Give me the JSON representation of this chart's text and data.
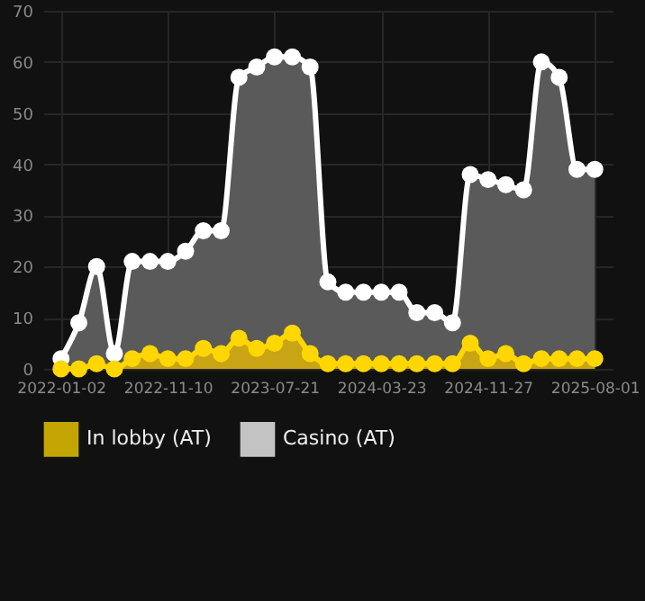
{
  "chart_data": {
    "type": "area",
    "categories": [
      "2022-01-02",
      null,
      null,
      null,
      null,
      null,
      "2022-11-10",
      null,
      null,
      null,
      null,
      null,
      "2023-07-21",
      null,
      null,
      null,
      null,
      null,
      "2024-03-23",
      null,
      null,
      null,
      null,
      null,
      "2024-11-27",
      null,
      null,
      null,
      null,
      null,
      "2025-08-01"
    ],
    "series": [
      {
        "name": "In lobby (AT)",
        "color": "#ffd700",
        "values": [
          0,
          0,
          1,
          0,
          2,
          3,
          2,
          2,
          4,
          3,
          6,
          4,
          5,
          7,
          3,
          1,
          1,
          1,
          1,
          1,
          1,
          1,
          1,
          5,
          2,
          3,
          1,
          2,
          2,
          2,
          2
        ]
      },
      {
        "name": "Casino (AT)",
        "color": "#ffffff",
        "values": [
          2,
          9,
          20,
          3,
          21,
          21,
          21,
          23,
          27,
          27,
          57,
          59,
          61,
          61,
          59,
          17,
          15,
          15,
          15,
          15,
          11,
          11,
          9,
          38,
          37,
          36,
          35,
          60,
          57,
          39,
          39
        ]
      }
    ],
    "ylim": [
      0,
      70
    ],
    "yticks": [
      0,
      10,
      20,
      30,
      40,
      50,
      60,
      70
    ],
    "grid": true,
    "legend": "bottom",
    "marker": "circle"
  }
}
